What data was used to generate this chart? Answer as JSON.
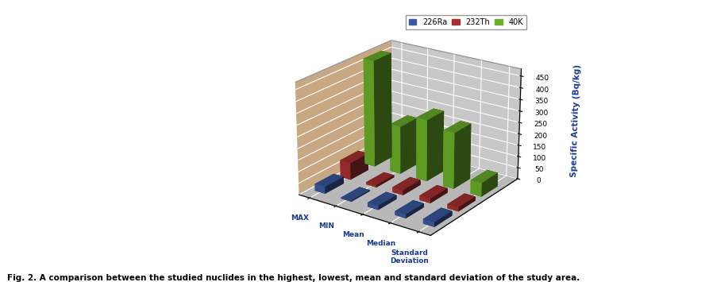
{
  "categories": [
    "MAX",
    "MIN",
    "Mean",
    "Median",
    "Standard\nDeviation"
  ],
  "series": [
    "226Ra",
    "232Th",
    "40K"
  ],
  "values": {
    "226Ra": [
      30,
      5,
      18,
      17,
      20
    ],
    "232Th": [
      75,
      10,
      22,
      20,
      18
    ],
    "40K": [
      470,
      210,
      270,
      245,
      60
    ]
  },
  "colors": {
    "226Ra": "#3B5AA0",
    "232Th": "#A83030",
    "40K": "#6AAF2A"
  },
  "ylabel": "Specific Activity (Bq/kg)",
  "yticks": [
    0,
    50,
    100,
    150,
    200,
    250,
    300,
    350,
    400,
    450
  ],
  "ylim": [
    0,
    480
  ],
  "caption": "Fig. 2. A comparison between the studied nuclides in the highest, lowest, mean and standard deviation of the study area.",
  "legend_labels": [
    "226Ra",
    "232Th",
    "40K"
  ],
  "floor_color": "#C8A882",
  "wall_color_back": "#C8C8C8",
  "wall_color_side": "#B8B8B8",
  "background_color": "#FFFFFF",
  "elev": 22,
  "azim": -55
}
